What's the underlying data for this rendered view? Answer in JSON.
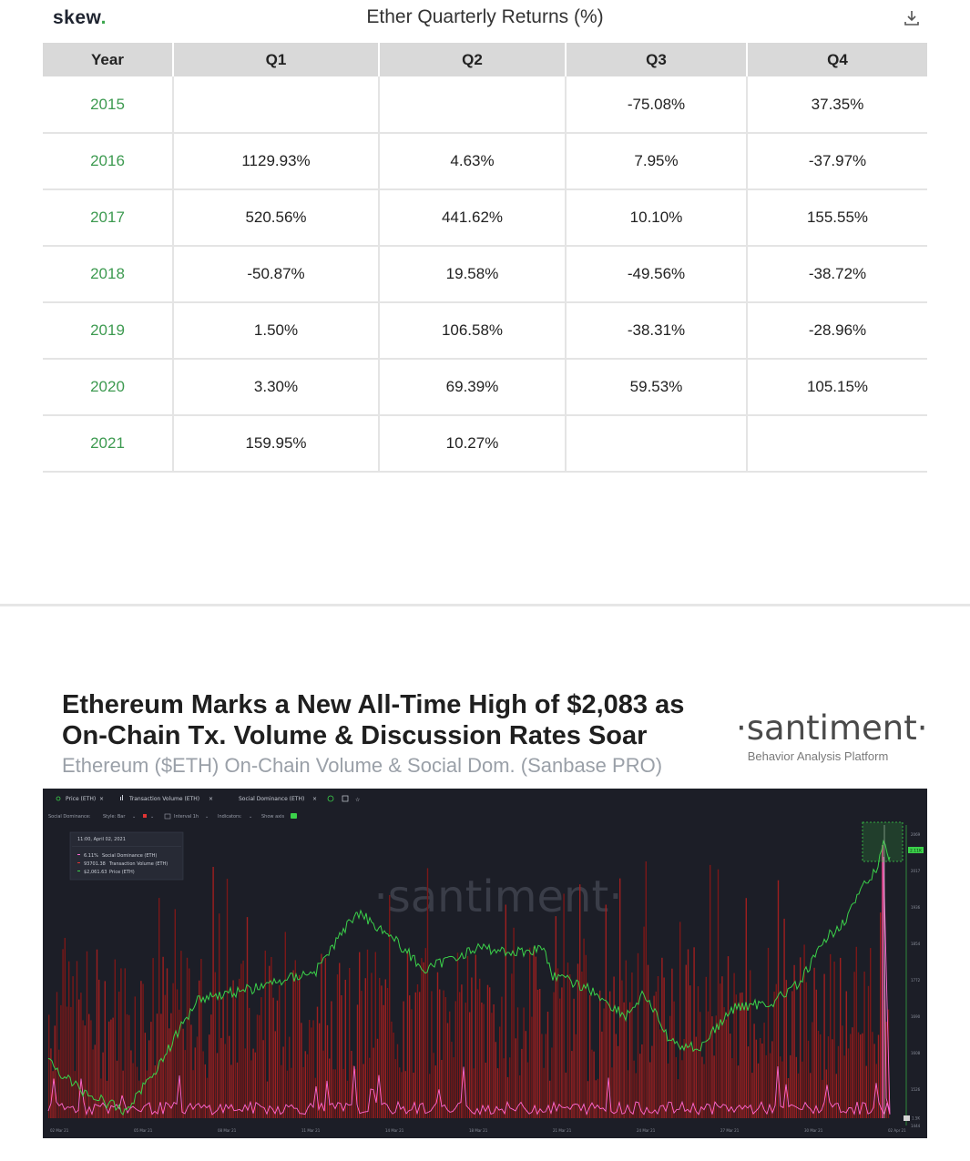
{
  "skew": {
    "logo": "skew",
    "logo_dot": ".",
    "title": "Ether Quarterly Returns (%)",
    "download_icon": "download-icon",
    "table": {
      "headers": [
        "Year",
        "Q1",
        "Q2",
        "Q3",
        "Q4"
      ],
      "rows": [
        {
          "year": "2015",
          "q1": "",
          "q2": "",
          "q3": "-75.08%",
          "q4": "37.35%"
        },
        {
          "year": "2016",
          "q1": "1129.93%",
          "q2": "4.63%",
          "q3": "7.95%",
          "q4": "-37.97%"
        },
        {
          "year": "2017",
          "q1": "520.56%",
          "q2": "441.62%",
          "q3": "10.10%",
          "q4": "155.55%"
        },
        {
          "year": "2018",
          "q1": "-50.87%",
          "q2": "19.58%",
          "q3": "-49.56%",
          "q4": "-38.72%"
        },
        {
          "year": "2019",
          "q1": "1.50%",
          "q2": "106.58%",
          "q3": "-38.31%",
          "q4": "-28.96%"
        },
        {
          "year": "2020",
          "q1": "3.30%",
          "q2": "69.39%",
          "q3": "59.53%",
          "q4": "105.15%"
        },
        {
          "year": "2021",
          "q1": "159.95%",
          "q2": "10.27%",
          "q3": "",
          "q4": ""
        }
      ],
      "year_color": "#3d9a50"
    }
  },
  "santiment": {
    "title": "Ethereum Marks a New All-Time High of $2,083 as On-Chain Tx. Volume & Discussion Rates Soar",
    "subtitle": "Ethereum ($ETH) On-Chain Volume & Social Dom. (Sanbase PRO)",
    "brand": "·santiment·",
    "brand_tagline": "Behavior Analysis Platform",
    "chart": {
      "toolbar": {
        "tabs": [
          "Price (ETH)",
          "Transaction Volume (ETH)",
          "Social Dominance (ETH)"
        ],
        "settings": {
          "metric": "Social Dominance:",
          "style": "Style: Bar",
          "interval": "Interval 1h",
          "indicators": "Indicators:",
          "show_axis": "Show axis"
        }
      },
      "tooltip": {
        "timestamp": "11:00, April 02, 2021",
        "social_dominance": "6.11%",
        "social_dominance_label": "Social Dominance (ETH)",
        "tx_volume": "93701.38",
        "tx_volume_label": "Transaction Volume (ETH)",
        "price": "$2,061.63",
        "price_label": "Price (ETH)"
      },
      "watermark": "·santiment·",
      "x_ticks": [
        "02 Mar 21",
        "05 Mar 21",
        "08 Mar 21",
        "11 Mar 21",
        "14 Mar 21",
        "18 Mar 21",
        "21 Mar 21",
        "24 Mar 21",
        "27 Mar 21",
        "30 Mar 21",
        "02 Apr 21"
      ],
      "y_ticks": [
        "2069",
        "2017",
        "1936",
        "1854",
        "1772",
        "1690",
        "1608",
        "1526",
        "1444"
      ],
      "current_price_label": "2.11K",
      "low_label": "1.5K",
      "colors": {
        "background": "#1c1e27",
        "price": "#3bd14a",
        "social_dominance": "#ff69d2",
        "tx_volume": "#9e1f1f"
      }
    }
  }
}
